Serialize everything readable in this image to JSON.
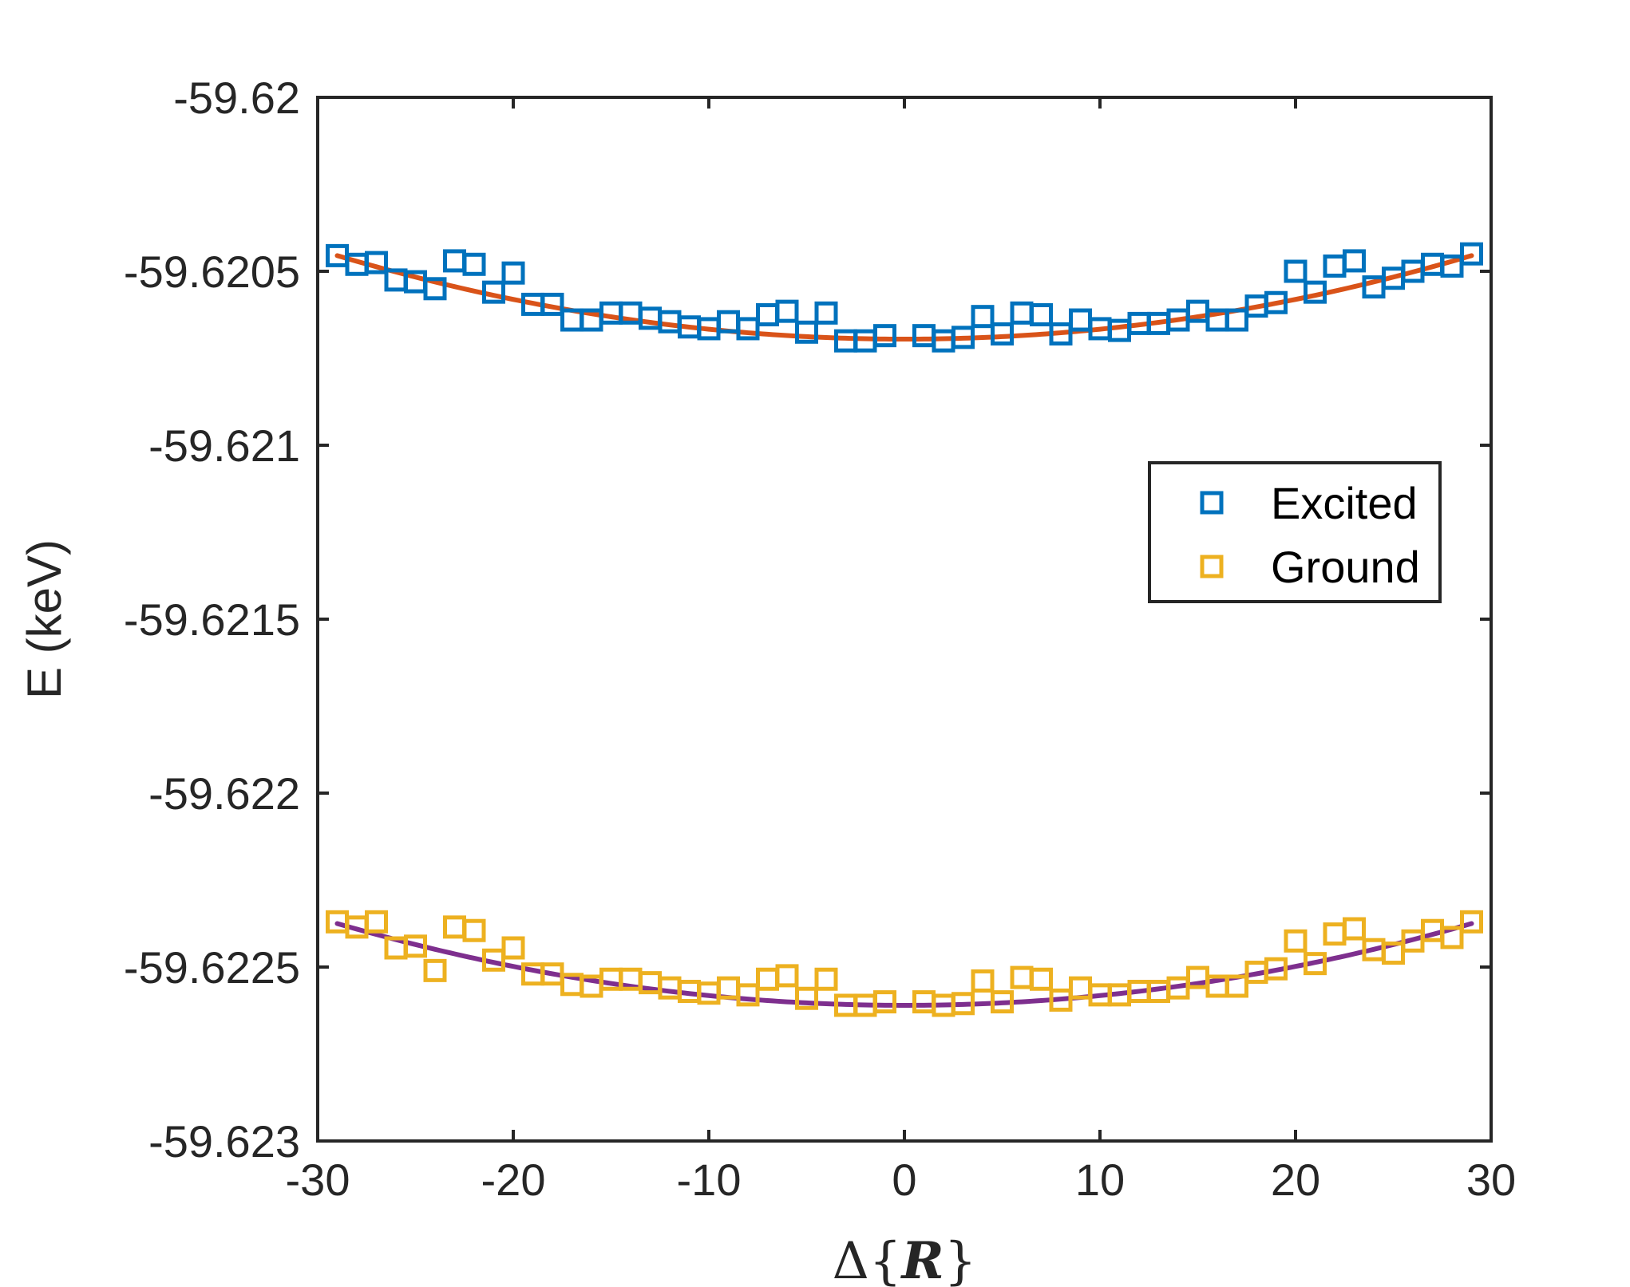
{
  "chart_data": {
    "type": "scatter",
    "title": "",
    "xlabel": "Δ{R}",
    "xlabel_parts": {
      "prefix": "Δ{",
      "symbol": "R",
      "suffix": "}"
    },
    "ylabel": "E (keV)",
    "xlim": [
      -30,
      30
    ],
    "ylim": [
      -59.623,
      -59.62
    ],
    "xticks": [
      -30,
      -20,
      -10,
      0,
      10,
      20,
      30
    ],
    "xtick_labels": [
      "-30",
      "-20",
      "-10",
      "0",
      "10",
      "20",
      "30"
    ],
    "yticks": [
      -59.62,
      -59.6205,
      -59.621,
      -59.6215,
      -59.622,
      -59.6225,
      -59.623
    ],
    "ytick_labels": [
      "-59.62",
      "-59.6205",
      "-59.621",
      "-59.6215",
      "-59.622",
      "-59.6225",
      "-59.623"
    ],
    "grid": false,
    "legend_position": "right",
    "x": [
      -29,
      -28,
      -27,
      -26,
      -25,
      -24,
      -23,
      -22,
      -21,
      -20,
      -19,
      -18,
      -17,
      -16,
      -15,
      -14,
      -13,
      -12,
      -11,
      -10,
      -9,
      -8,
      -7,
      -6,
      -5,
      -4,
      -3,
      -2,
      -1,
      1,
      2,
      3,
      4,
      5,
      6,
      7,
      8,
      9,
      10,
      11,
      12,
      13,
      14,
      15,
      16,
      17,
      18,
      19,
      20,
      21,
      22,
      23,
      24,
      25,
      26,
      27,
      28,
      29
    ],
    "series": [
      {
        "name": "Excited",
        "marker": "square",
        "color": "#0072BD",
        "values": [
          -59.620455,
          -59.62048,
          -59.620475,
          -59.620525,
          -59.62053,
          -59.62055,
          -59.62047,
          -59.62048,
          -59.62056,
          -59.620505,
          -59.620595,
          -59.620595,
          -59.62064,
          -59.62064,
          -59.62062,
          -59.62062,
          -59.620635,
          -59.620645,
          -59.62066,
          -59.620665,
          -59.620645,
          -59.620665,
          -59.620625,
          -59.620615,
          -59.620675,
          -59.62062,
          -59.6207,
          -59.6207,
          -59.620685,
          -59.620685,
          -59.6207,
          -59.62069,
          -59.62063,
          -59.62068,
          -59.62062,
          -59.620625,
          -59.62068,
          -59.62064,
          -59.620665,
          -59.62067,
          -59.62065,
          -59.62065,
          -59.62064,
          -59.620615,
          -59.62064,
          -59.62064,
          -59.6206,
          -59.62059,
          -59.6205,
          -59.62056,
          -59.620485,
          -59.62047,
          -59.620545,
          -59.62052,
          -59.6205,
          -59.62048,
          -59.620485,
          -59.62045
        ]
      },
      {
        "name": "Ground",
        "marker": "square",
        "color": "#EDB120",
        "values": [
          -59.62237,
          -59.622385,
          -59.62237,
          -59.622445,
          -59.62244,
          -59.62251,
          -59.622385,
          -59.622395,
          -59.62248,
          -59.622445,
          -59.62252,
          -59.62252,
          -59.62255,
          -59.622555,
          -59.622535,
          -59.622535,
          -59.622545,
          -59.62256,
          -59.62257,
          -59.622575,
          -59.62256,
          -59.62258,
          -59.622535,
          -59.622525,
          -59.62259,
          -59.622535,
          -59.62261,
          -59.62261,
          -59.6226,
          -59.6226,
          -59.62261,
          -59.622605,
          -59.62254,
          -59.6226,
          -59.62253,
          -59.622535,
          -59.622595,
          -59.62256,
          -59.62258,
          -59.62258,
          -59.62257,
          -59.62257,
          -59.62256,
          -59.62253,
          -59.622555,
          -59.622555,
          -59.622515,
          -59.622505,
          -59.622425,
          -59.62249,
          -59.622405,
          -59.62239,
          -59.62245,
          -59.62246,
          -59.622425,
          -59.622395,
          -59.622415,
          -59.62237
        ]
      }
    ],
    "fits": [
      {
        "for_series": "Excited",
        "color": "#D95319",
        "type": "quadratic",
        "vertex_x": 0,
        "vertex_y": -59.620695,
        "edge_x": 29,
        "edge_y": -59.620455
      },
      {
        "for_series": "Ground",
        "color": "#7E2F8E",
        "type": "quadratic",
        "vertex_x": 0,
        "vertex_y": -59.62261,
        "edge_x": 29,
        "edge_y": -59.622375
      }
    ]
  }
}
